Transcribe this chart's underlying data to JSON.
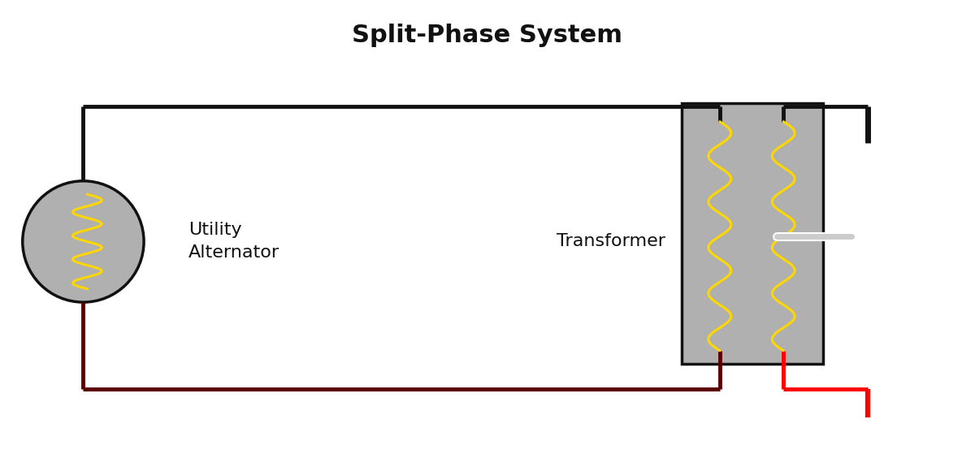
{
  "title": "Split-Phase System",
  "title_fontsize": 22,
  "title_fontweight": "bold",
  "bg_color": "#ffffff",
  "alt_fill_color": "#b0b0b0",
  "alt_outline_color": "#111111",
  "alt_coil_color": "#FFD700",
  "wire_black_color": "#111111",
  "wire_dark_red_color": "#5a0000",
  "wire_red_color": "#ff0000",
  "wire_lw": 3.5,
  "transformer_fill": "#b0b0b0",
  "transformer_outline": "#111111",
  "label_alternator": "Utility\nAlternator",
  "label_transformer": "Transformer",
  "label_fontsize": 16,
  "fig_width": 12.0,
  "fig_height": 5.75,
  "dpi": 100
}
